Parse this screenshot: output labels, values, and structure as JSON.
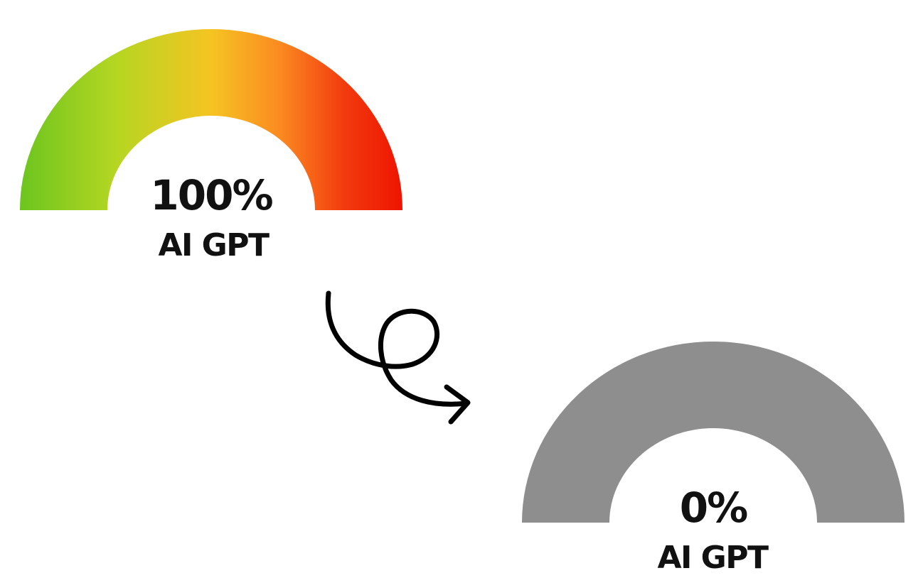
{
  "gauges": [
    {
      "value_text": "100%",
      "label": "AI GPT",
      "fill_percent": 100,
      "colors": [
        "#6cc51f",
        "#b5d622",
        "#f5c422",
        "#fb8a21",
        "#f23a0e",
        "#ee1400"
      ]
    },
    {
      "value_text": "0%",
      "label": "AI GPT",
      "fill_percent": 0,
      "track_color": "#8e8e8e"
    }
  ],
  "arrow": {
    "color": "#000000"
  }
}
